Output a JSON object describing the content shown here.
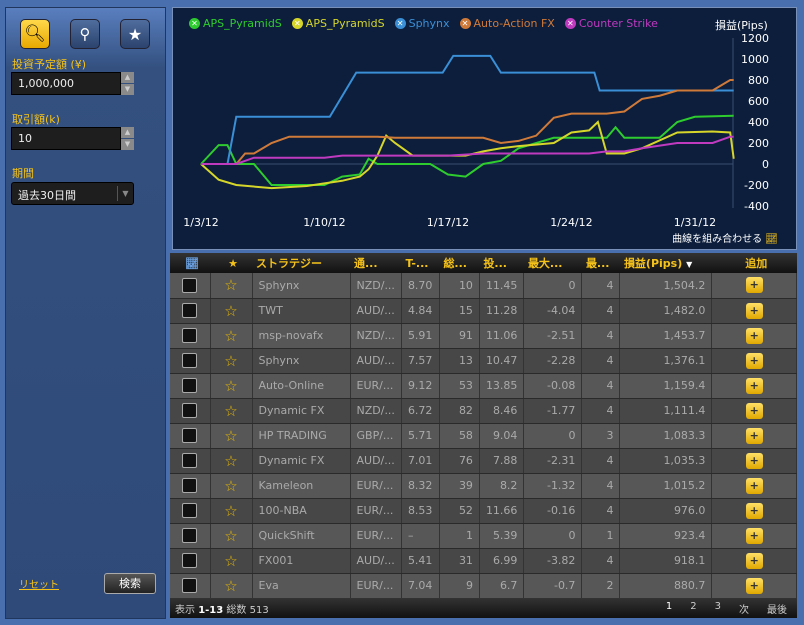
{
  "sidebar": {
    "invest_label": "投資予定額 (¥)",
    "invest_value": "1,000,000",
    "trade_label": "取引額(k)",
    "trade_value": "10",
    "period_label": "期間",
    "period_value": "過去30日間",
    "reset": "リセット",
    "search": "検索"
  },
  "chart_data": {
    "type": "line",
    "xlabel": "",
    "ylabel": "損益(Pips)",
    "ylim": [
      -400,
      1200
    ],
    "yticks": [
      "1200",
      "1000",
      "800",
      "600",
      "400",
      "200",
      "0",
      "-200",
      "-400"
    ],
    "xticks": [
      "1/3/12",
      "1/10/12",
      "1/17/12",
      "1/24/12",
      "1/31/12"
    ],
    "x_unit": "days since 1/3/12",
    "series": [
      {
        "name": "APS_PyramidS",
        "color": "#2ecc2e",
        "points": [
          [
            0,
            0
          ],
          [
            1,
            180
          ],
          [
            1.5,
            180
          ],
          [
            2,
            0
          ],
          [
            3,
            0
          ],
          [
            4,
            -200
          ],
          [
            7,
            -200
          ],
          [
            8,
            -120
          ],
          [
            9,
            -100
          ],
          [
            9.5,
            50
          ],
          [
            10,
            0
          ],
          [
            12,
            0
          ],
          [
            13,
            0
          ],
          [
            14,
            -100
          ],
          [
            15,
            -120
          ],
          [
            16,
            0
          ],
          [
            17,
            30
          ],
          [
            18,
            150
          ],
          [
            20,
            250
          ],
          [
            22,
            250
          ],
          [
            23,
            250
          ],
          [
            23.5,
            350
          ],
          [
            24,
            250
          ],
          [
            26,
            250
          ],
          [
            27,
            400
          ],
          [
            28,
            450
          ],
          [
            30.2,
            460
          ]
        ]
      },
      {
        "name": "APS_PyramidS",
        "color": "#d6d62a",
        "points": [
          [
            0,
            0
          ],
          [
            1,
            -150
          ],
          [
            2,
            -200
          ],
          [
            4,
            -230
          ],
          [
            6,
            -210
          ],
          [
            8,
            -160
          ],
          [
            9,
            -120
          ],
          [
            9.5,
            -50
          ],
          [
            10,
            80
          ],
          [
            10.5,
            270
          ],
          [
            11,
            200
          ],
          [
            12,
            80
          ],
          [
            15,
            80
          ],
          [
            16,
            120
          ],
          [
            17,
            150
          ],
          [
            18,
            170
          ],
          [
            20,
            200
          ],
          [
            21,
            300
          ],
          [
            22,
            320
          ],
          [
            22.5,
            400
          ],
          [
            23,
            100
          ],
          [
            24,
            100
          ],
          [
            25,
            150
          ],
          [
            27,
            300
          ],
          [
            29,
            310
          ],
          [
            30,
            300
          ],
          [
            30.2,
            50
          ]
        ]
      },
      {
        "name": "Sphynx",
        "color": "#3a8fd6",
        "points": [
          [
            0,
            0
          ],
          [
            1.5,
            0
          ],
          [
            2,
            450
          ],
          [
            7.3,
            450
          ],
          [
            8.8,
            870
          ],
          [
            13.7,
            870
          ],
          [
            14.3,
            1030
          ],
          [
            16.4,
            1030
          ],
          [
            17,
            870
          ],
          [
            22.3,
            870
          ],
          [
            22.6,
            700
          ],
          [
            30.2,
            700
          ]
        ]
      },
      {
        "name": "Auto-Action FX",
        "color": "#d07a3a",
        "points": [
          [
            0,
            0
          ],
          [
            2,
            0
          ],
          [
            2.5,
            100
          ],
          [
            3,
            100
          ],
          [
            4,
            200
          ],
          [
            5,
            260
          ],
          [
            7,
            260
          ],
          [
            8,
            260
          ],
          [
            10,
            260
          ],
          [
            11,
            250
          ],
          [
            15,
            250
          ],
          [
            16,
            250
          ],
          [
            17,
            200
          ],
          [
            18,
            220
          ],
          [
            19,
            270
          ],
          [
            20,
            440
          ],
          [
            21,
            480
          ],
          [
            22,
            480
          ],
          [
            23,
            480
          ],
          [
            24,
            500
          ],
          [
            25,
            620
          ],
          [
            26,
            650
          ],
          [
            27,
            700
          ],
          [
            28,
            700
          ],
          [
            29,
            700
          ],
          [
            30,
            800
          ],
          [
            30.2,
            800
          ]
        ]
      },
      {
        "name": "Counter Strike",
        "color": "#c03ac0",
        "points": [
          [
            0,
            0
          ],
          [
            2,
            0
          ],
          [
            3,
            60
          ],
          [
            7,
            60
          ],
          [
            8,
            80
          ],
          [
            14,
            80
          ],
          [
            16,
            100
          ],
          [
            22,
            100
          ],
          [
            23,
            120
          ],
          [
            24,
            120
          ],
          [
            25,
            150
          ],
          [
            27,
            200
          ],
          [
            29,
            200
          ],
          [
            30,
            260
          ],
          [
            30.2,
            260
          ]
        ]
      }
    ]
  },
  "chart": {
    "combine_label": "曲線を組み合わせる"
  },
  "table": {
    "headers": [
      "ストラテジー",
      "通...",
      "T-...",
      "総...",
      "投...",
      "最大...",
      "最...",
      "損益(Pips)",
      "追加"
    ],
    "rows": [
      [
        "Sphynx",
        "NZD/...",
        "8.70",
        "10",
        "11.45",
        "0",
        "4",
        "1,504.2"
      ],
      [
        "TWT",
        "AUD/...",
        "4.84",
        "15",
        "11.28",
        "-4.04",
        "4",
        "1,482.0"
      ],
      [
        "msp-novafx",
        "NZD/...",
        "5.91",
        "91",
        "11.06",
        "-2.51",
        "4",
        "1,453.7"
      ],
      [
        "Sphynx",
        "AUD/...",
        "7.57",
        "13",
        "10.47",
        "-2.28",
        "4",
        "1,376.1"
      ],
      [
        "Auto-Online",
        "EUR/...",
        "9.12",
        "53",
        "13.85",
        "-0.08",
        "4",
        "1,159.4"
      ],
      [
        "Dynamic FX",
        "NZD/...",
        "6.72",
        "82",
        "8.46",
        "-1.77",
        "4",
        "1,111.4"
      ],
      [
        "HP TRADING",
        "GBP/...",
        "5.71",
        "58",
        "9.04",
        "0",
        "3",
        "1,083.3"
      ],
      [
        "Dynamic FX",
        "AUD/...",
        "7.01",
        "76",
        "7.88",
        "-2.31",
        "4",
        "1,035.3"
      ],
      [
        "Kameleon",
        "EUR/...",
        "8.32",
        "39",
        "8.2",
        "-1.32",
        "4",
        "1,015.2"
      ],
      [
        "100-NBA",
        "EUR/...",
        "8.53",
        "52",
        "11.66",
        "-0.16",
        "4",
        "976.0"
      ],
      [
        "QuickShift",
        "EUR/...",
        "–",
        "1",
        "5.39",
        "0",
        "1",
        "923.4"
      ],
      [
        "FX001",
        "AUD/...",
        "5.41",
        "31",
        "6.99",
        "-3.82",
        "4",
        "918.1"
      ],
      [
        "Eva",
        "EUR/...",
        "7.04",
        "9",
        "6.7",
        "-0.7",
        "2",
        "880.7"
      ]
    ]
  },
  "footer": {
    "show": "表示",
    "range": "1-13",
    "total_label": "総数",
    "total": "513",
    "pages": [
      "1",
      "2",
      "3"
    ],
    "next": "次",
    "last": "最後"
  }
}
